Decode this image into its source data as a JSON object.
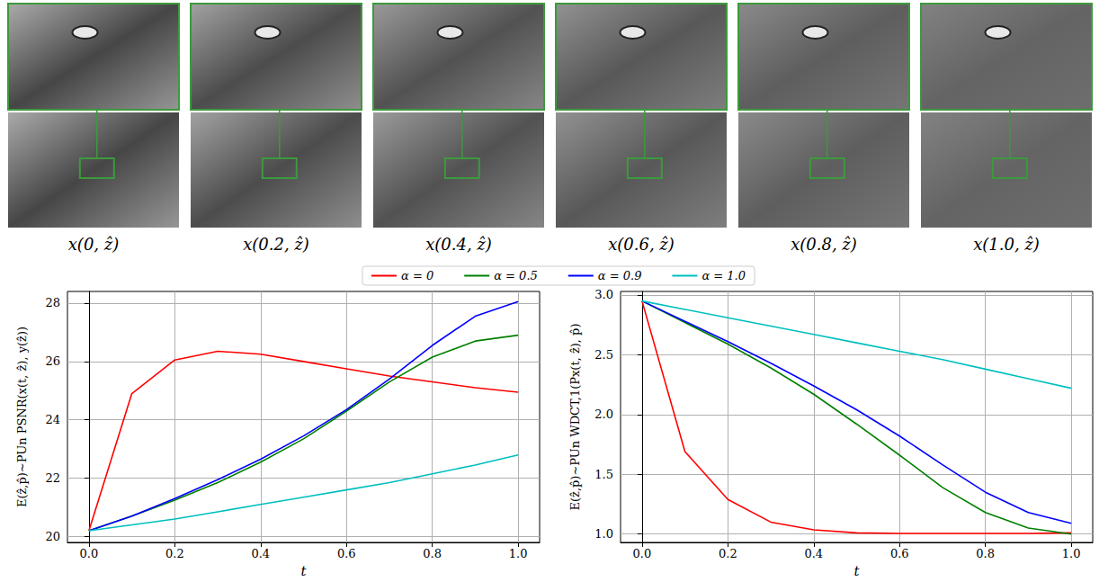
{
  "images": {
    "captions": [
      "x(0, ẑ)",
      "x(0.2, ẑ)",
      "x(0.4, ẑ)",
      "x(0.6, ẑ)",
      "x(0.8, ẑ)",
      "x(1.0, ẑ)"
    ]
  },
  "chart_data": [
    {
      "type": "line",
      "y_label": "E(ẑ,p̂)∼PUn PSNR(x(t, ẑ), y(ẑ))",
      "x_label": "t",
      "x": [
        0,
        0.1,
        0.2,
        0.3,
        0.4,
        0.5,
        0.6,
        0.7,
        0.8,
        0.9,
        1.0
      ],
      "series": [
        {
          "name": "α = 0",
          "color": "#ff0000",
          "values": [
            20.2,
            24.9,
            26.05,
            26.35,
            26.25,
            26.0,
            25.75,
            25.5,
            25.3,
            25.1,
            24.95
          ]
        },
        {
          "name": "α = 0.5",
          "color": "#008000",
          "values": [
            20.2,
            20.7,
            21.25,
            21.85,
            22.55,
            23.35,
            24.3,
            25.3,
            26.15,
            26.7,
            26.9
          ]
        },
        {
          "name": "α = 0.9",
          "color": "#0000ff",
          "values": [
            20.2,
            20.7,
            21.3,
            21.95,
            22.65,
            23.45,
            24.35,
            25.4,
            26.55,
            27.55,
            28.05
          ]
        },
        {
          "name": "α = 1.0",
          "color": "#00bfbf",
          "values": [
            20.2,
            20.4,
            20.6,
            20.85,
            21.1,
            21.35,
            21.6,
            21.85,
            22.15,
            22.45,
            22.8
          ]
        }
      ],
      "xlim": [
        -0.05,
        1.05
      ],
      "xticks": [
        {
          "value": 0,
          "label": "0.0"
        },
        0.2,
        0.4,
        0.6,
        0.8,
        {
          "value": 1,
          "label": "1.0"
        }
      ],
      "ylim": [
        19.8,
        28.4
      ],
      "yticks": [
        20,
        22,
        24,
        26,
        28
      ],
      "grid": true,
      "legend": "top"
    },
    {
      "type": "line",
      "y_label": "E(ẑ,p̂)∼PUn WDCT,1(Px(t, ẑ), p̂)",
      "x_label": "t",
      "x": [
        0,
        0.1,
        0.2,
        0.3,
        0.4,
        0.5,
        0.6,
        0.7,
        0.8,
        0.9,
        1.0
      ],
      "series": [
        {
          "name": "α = 0",
          "color": "#ff0000",
          "values": [
            2.95,
            1.69,
            1.29,
            1.1,
            1.035,
            1.01,
            1.005,
            1.005,
            1.005,
            1.005,
            1.01
          ]
        },
        {
          "name": "α = 0.5",
          "color": "#008000",
          "values": [
            2.95,
            2.77,
            2.59,
            2.39,
            2.17,
            1.92,
            1.66,
            1.39,
            1.18,
            1.05,
            1.0
          ]
        },
        {
          "name": "α = 0.9",
          "color": "#0000ff",
          "values": [
            2.95,
            2.78,
            2.61,
            2.43,
            2.24,
            2.04,
            1.82,
            1.58,
            1.35,
            1.18,
            1.09
          ]
        },
        {
          "name": "α = 1.0",
          "color": "#00bfbf",
          "values": [
            2.95,
            2.88,
            2.81,
            2.74,
            2.67,
            2.6,
            2.53,
            2.46,
            2.38,
            2.3,
            2.22
          ]
        }
      ],
      "xlim": [
        -0.05,
        1.05
      ],
      "xticks": [
        {
          "value": 0,
          "label": "0.0"
        },
        0.2,
        0.4,
        0.6,
        0.8,
        {
          "value": 1,
          "label": "1.0"
        }
      ],
      "ylim": [
        0.93,
        3.03
      ],
      "yticks": [
        {
          "value": 1,
          "label": "1.0"
        },
        1.5,
        {
          "value": 2,
          "label": "2.0"
        },
        2.5,
        {
          "value": 3,
          "label": "3.0"
        }
      ],
      "grid": true,
      "legend": "top"
    }
  ]
}
